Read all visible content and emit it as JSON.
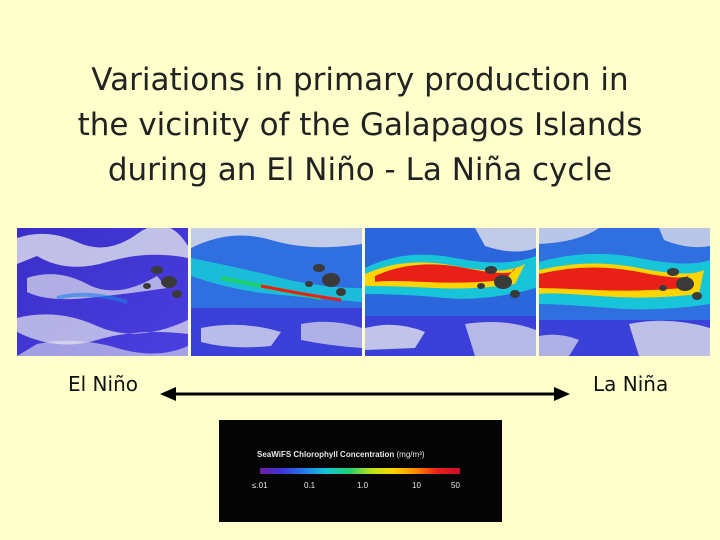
{
  "title": {
    "line1": "Variations in primary production in",
    "line2": "the vicinity of the Galapagos Islands",
    "line3": "during an El Niño - La Niña cycle"
  },
  "panels": [
    {
      "name": "panel-1"
    },
    {
      "name": "panel-2"
    },
    {
      "name": "panel-3"
    },
    {
      "name": "panel-4"
    }
  ],
  "axis": {
    "left_label": "El Niño",
    "right_label": "La Niña"
  },
  "legend": {
    "title": "SeaWiFS Chlorophyll Concentration",
    "unit": "(mg/m³)",
    "ticks": [
      "≤.01",
      "0.1",
      "1.0",
      "10",
      "50"
    ],
    "colors": [
      "#6b1fa0",
      "#3c35d8",
      "#1f7fe6",
      "#18c4d8",
      "#1fcf6e",
      "#b9e21c",
      "#ffd400",
      "#ff8a00",
      "#e82018",
      "#c8102a"
    ]
  },
  "colors": {
    "background": "#ffffcc",
    "ocean_low": "#3c35d8",
    "ocean_mid": "#1f7fe6",
    "bloom_high": "#e82018",
    "cloud": "#e6e6ee",
    "land": "#3a3a3a"
  }
}
